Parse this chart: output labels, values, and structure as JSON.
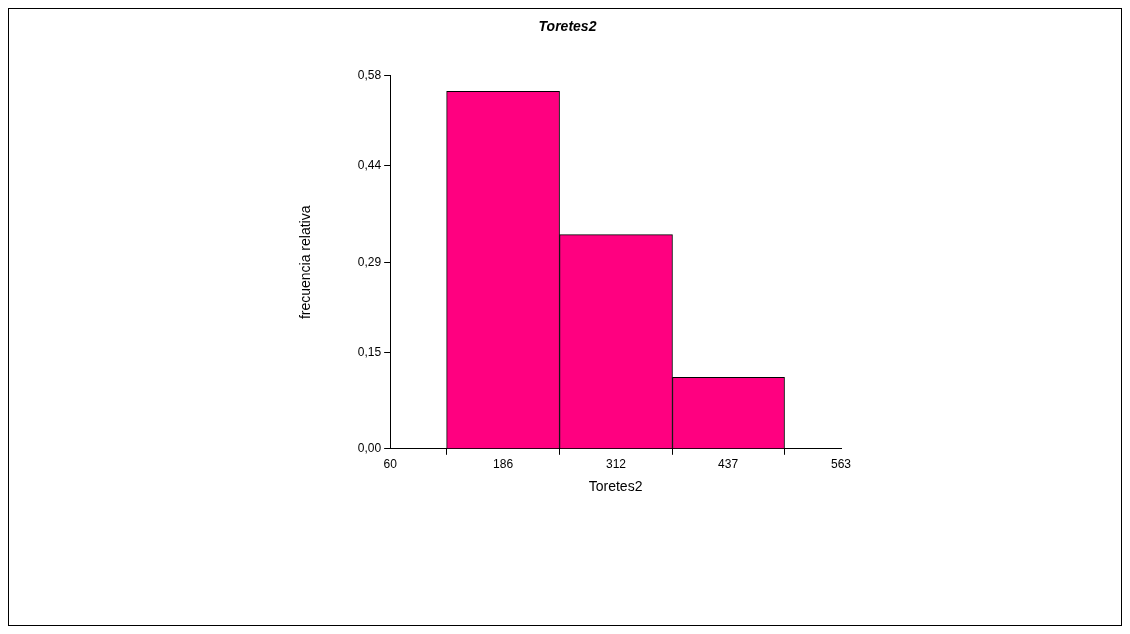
{
  "chart_data": {
    "type": "histogram",
    "title": "Toretes2",
    "xlabel": "Toretes2",
    "ylabel": "frecuencia relativa",
    "bins": [
      123,
      249,
      375,
      500
    ],
    "values": [
      0.556,
      0.333,
      0.111
    ],
    "color": "#ff0080",
    "xlim": [
      60,
      563
    ],
    "xticks": [
      60,
      186,
      312,
      437,
      563
    ],
    "ylim": [
      0,
      0.58
    ],
    "yticks": [
      {
        "value": 0,
        "label": "0,00"
      },
      {
        "value": 0.15,
        "label": "0,15"
      },
      {
        "value": 0.29,
        "label": "0,29"
      },
      {
        "value": 0.44,
        "label": "0,44"
      },
      {
        "value": 0.58,
        "label": "0,58"
      }
    ],
    "grid": false,
    "legend": false
  }
}
